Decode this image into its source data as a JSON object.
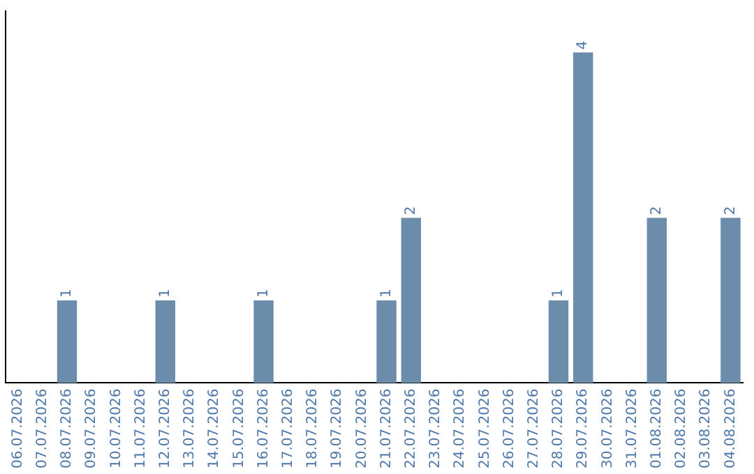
{
  "chart_data": {
    "type": "bar",
    "categories": [
      "06.07.2026",
      "07.07.2026",
      "08.07.2026",
      "09.07.2026",
      "10.07.2026",
      "11.07.2026",
      "12.07.2026",
      "13.07.2026",
      "14.07.2026",
      "15.07.2026",
      "16.07.2026",
      "17.07.2026",
      "18.07.2026",
      "19.07.2026",
      "20.07.2026",
      "21.07.2026",
      "22.07.2026",
      "23.07.2026",
      "24.07.2026",
      "25.07.2026",
      "26.07.2026",
      "27.07.2026",
      "28.07.2026",
      "29.07.2026",
      "30.07.2026",
      "31.07.2026",
      "01.08.2026",
      "02.08.2026",
      "03.08.2026",
      "04.08.2026"
    ],
    "values": [
      0,
      0,
      1,
      0,
      0,
      0,
      1,
      0,
      0,
      0,
      1,
      0,
      0,
      0,
      0,
      1,
      2,
      0,
      0,
      0,
      0,
      0,
      1,
      4,
      0,
      0,
      2,
      0,
      0,
      2
    ],
    "value_labels": [
      null,
      null,
      "1",
      null,
      null,
      null,
      "1",
      null,
      null,
      null,
      "1",
      null,
      null,
      null,
      null,
      "1",
      "2",
      null,
      null,
      null,
      null,
      null,
      "1",
      "4",
      null,
      null,
      "2",
      null,
      null,
      "2"
    ],
    "color": "#6b8cab",
    "grid": false,
    "legend": false
  }
}
